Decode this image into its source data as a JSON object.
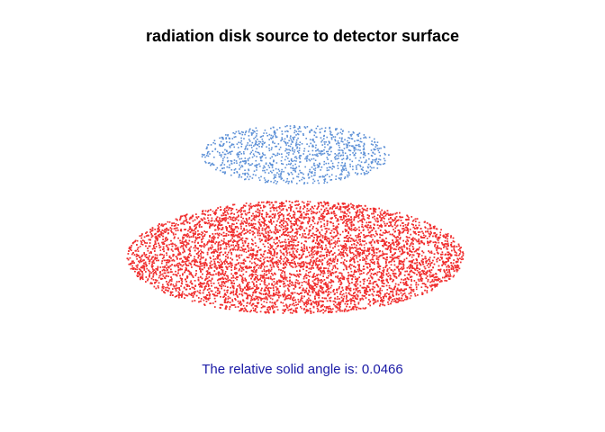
{
  "figure": {
    "title": "radiation disk source to detector surface",
    "caption": "The relative solid angle is: 0.0466"
  },
  "surfaces": [
    {
      "name": "detector",
      "role": "detector surface",
      "color": "#5b8fd6",
      "point_count": 1000
    },
    {
      "name": "source",
      "role": "radiation disk source",
      "color": "#f03030",
      "point_count": 12000
    }
  ],
  "caption_color": "#1a1aa6"
}
